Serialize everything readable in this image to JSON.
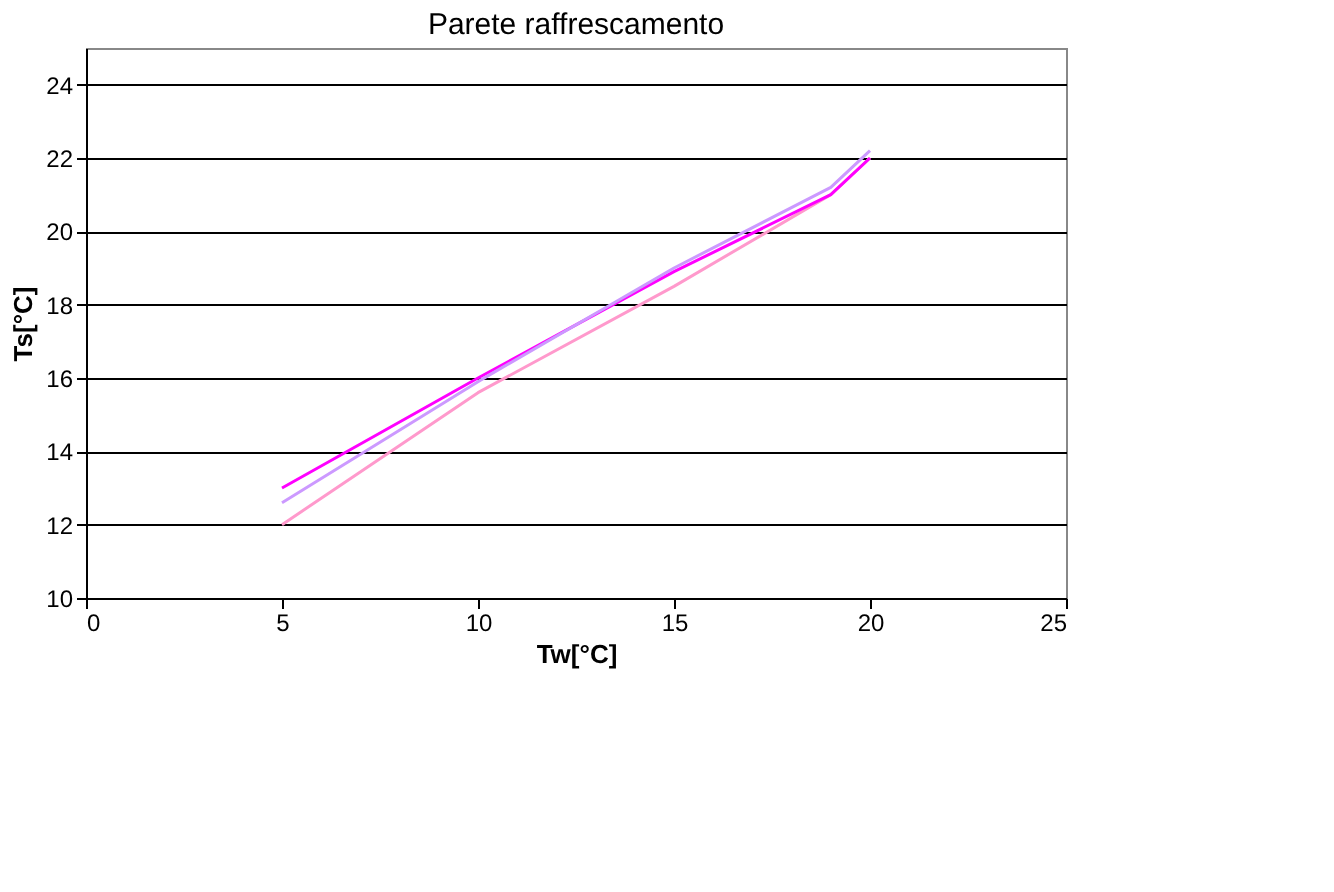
{
  "chart_data": {
    "type": "line",
    "title": "Parete raffrescamento",
    "xlabel": "Tw[°C]",
    "ylabel": "Ts[°C]",
    "x": [
      5,
      10,
      15,
      19,
      20
    ],
    "series": [
      {
        "color": "#ff99cc",
        "values": [
          12,
          15.6,
          18.5,
          21,
          22
        ]
      },
      {
        "color": "#ff00ff",
        "values": [
          13,
          16,
          18.9,
          21,
          22
        ]
      },
      {
        "color": "#cc99ff",
        "values": [
          12.6,
          15.9,
          19,
          21.2,
          22.2
        ]
      }
    ],
    "xlim": [
      0,
      25
    ],
    "xticks": [
      0,
      5,
      10,
      15,
      20,
      25
    ],
    "ylim": [
      10,
      25
    ],
    "yticks": [
      10,
      12,
      14,
      16,
      18,
      20,
      22,
      24
    ],
    "grid": "y",
    "marker": "none",
    "line_style": "solid"
  }
}
